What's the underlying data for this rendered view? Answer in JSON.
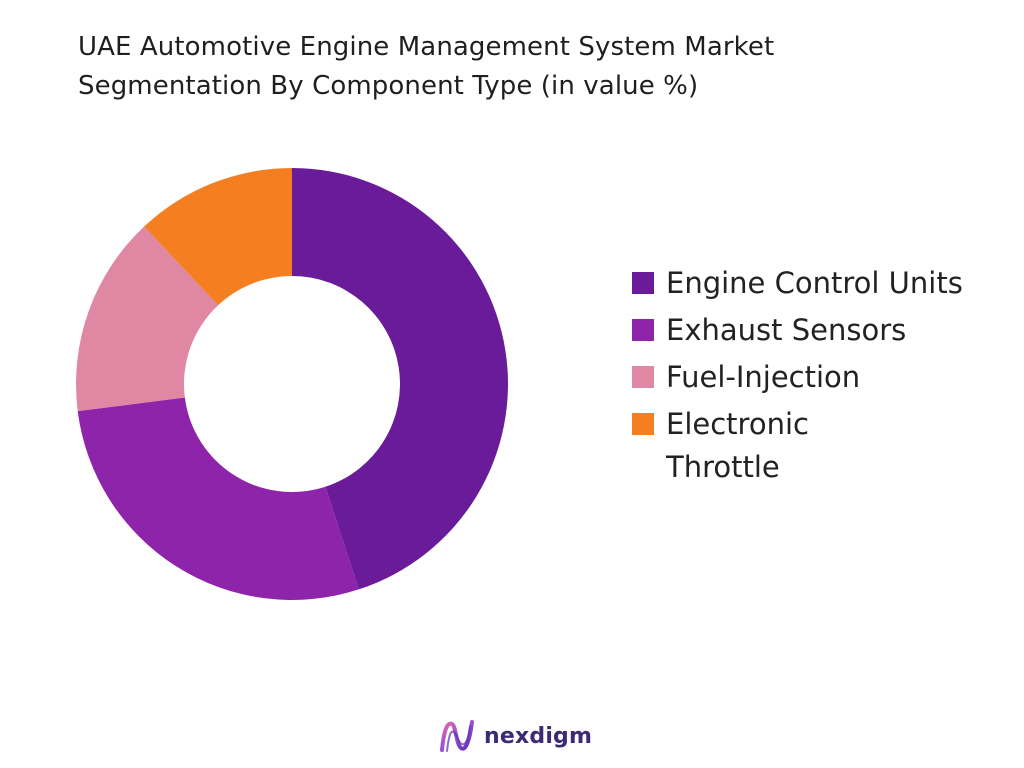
{
  "chart_data": {
    "type": "pie",
    "variant": "donut",
    "title_lines": [
      "UAE Automotive Engine Management System Market",
      "Segmentation By Component Type (in value %)"
    ],
    "categories": [
      "Engine Control Units",
      "Exhaust Sensors",
      "Fuel-Injection",
      "Electronic Throttle"
    ],
    "values": [
      45,
      28,
      15,
      12
    ],
    "colors": [
      "#6a1b9a",
      "#8e24aa",
      "#e088a3",
      "#f57f20"
    ],
    "legend_position": "right",
    "start_angle_deg": 0,
    "direction": "clockwise"
  },
  "legend": {
    "items": [
      {
        "label": "Engine Control Units",
        "color": "#6a1b9a"
      },
      {
        "label": "Exhaust Sensors",
        "color": "#8e24aa"
      },
      {
        "label": "Fuel-Injection",
        "color": "#e088a3"
      },
      {
        "label": "Electronic Throttle",
        "color": "#f57f20"
      }
    ]
  },
  "brand": {
    "name": "nexdigm",
    "icon": "nexdigm-logo-icon",
    "color": "#3b2a74"
  }
}
